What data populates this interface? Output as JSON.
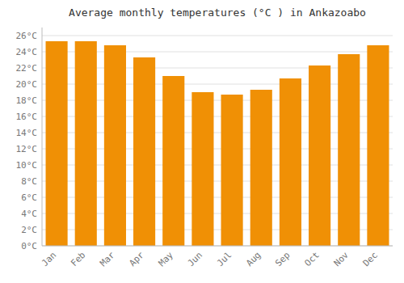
{
  "chart_data": {
    "type": "bar",
    "title": "Average monthly temperatures (°C ) in Ankazoabo",
    "categories": [
      "Jan",
      "Feb",
      "Mar",
      "Apr",
      "May",
      "Jun",
      "Jul",
      "Aug",
      "Sep",
      "Oct",
      "Nov",
      "Dec"
    ],
    "values": [
      25.3,
      25.3,
      24.8,
      23.3,
      21.0,
      19.0,
      18.7,
      19.3,
      20.7,
      22.3,
      23.7,
      24.8
    ],
    "color": "#F09005",
    "ylim": [
      0,
      27
    ],
    "yticks": [
      {
        "value": 0,
        "label": "0°C"
      },
      {
        "value": 2,
        "label": "2°C"
      },
      {
        "value": 4,
        "label": "4°C"
      },
      {
        "value": 6,
        "label": "6°C"
      },
      {
        "value": 8,
        "label": "8°C"
      },
      {
        "value": 10,
        "label": "10°C"
      },
      {
        "value": 12,
        "label": "12°C"
      },
      {
        "value": 14,
        "label": "14°C"
      },
      {
        "value": 16,
        "label": "16°C"
      },
      {
        "value": 18,
        "label": "18°C"
      },
      {
        "value": 20,
        "label": "20°C"
      },
      {
        "value": 22,
        "label": "22°C"
      },
      {
        "value": 24,
        "label": "24°C"
      },
      {
        "value": 26,
        "label": "26°C"
      }
    ],
    "grid": true
  }
}
